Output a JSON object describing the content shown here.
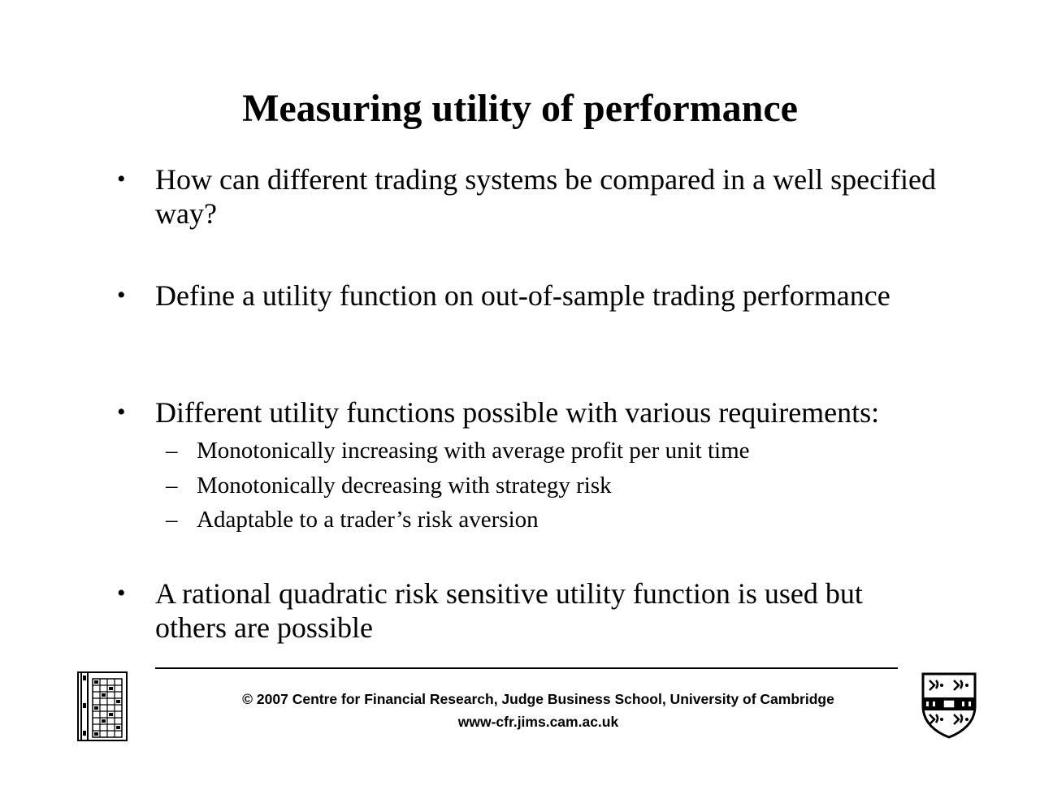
{
  "slide": {
    "title": "Measuring utility of performance",
    "bullets": [
      {
        "marker": "•",
        "text": "How can different trading systems be compared in a well specified way?"
      },
      {
        "marker": "•",
        "text": "Define a utility function on out-of-sample trading performance"
      },
      {
        "marker": "•",
        "text": "Different utility functions possible with various requirements:"
      },
      {
        "marker": "•",
        "text": "A rational quadratic risk sensitive utility function is used but others are possible"
      }
    ],
    "sub_bullets": [
      {
        "marker": "–",
        "text": "Monotonically increasing with average profit per unit time"
      },
      {
        "marker": "–",
        "text": "Monotonically decreasing with strategy risk"
      },
      {
        "marker": "–",
        "text": "Adaptable to a trader’s risk aversion"
      }
    ]
  },
  "footer": {
    "copyright": "© 2007 Centre for Financial Research,  Judge Business School,  University of Cambridge",
    "url": "www-cfr.jims.cam.ac.uk"
  },
  "logos": {
    "left": "judge-business-school-logo",
    "right": "university-of-cambridge-crest"
  }
}
